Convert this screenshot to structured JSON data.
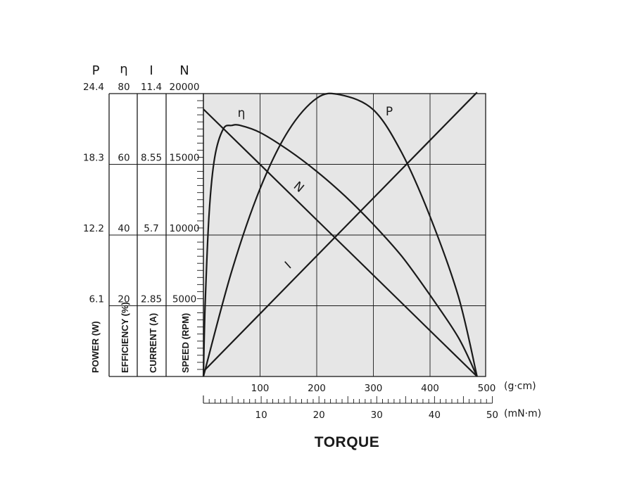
{
  "chart_data": {
    "type": "line",
    "title": "",
    "xlabel": "TORQUE",
    "x_primary": {
      "unit": "(g·cm)",
      "range": [
        0,
        500
      ],
      "ticks": [
        100,
        200,
        300,
        400,
        500
      ],
      "tick_labels": [
        "100",
        "200",
        "300",
        "400",
        "500"
      ]
    },
    "x_secondary": {
      "unit": "(mN·m)",
      "range": [
        0,
        50
      ],
      "ticks": [
        10,
        20,
        30,
        40,
        50
      ],
      "tick_labels": [
        "10",
        "20",
        "30",
        "40",
        "50"
      ]
    },
    "y_axes": [
      {
        "key": "P",
        "symbol": "P",
        "label": "POWER (W)",
        "max_label": "24.4",
        "range": [
          0,
          24.4
        ],
        "tick_labels": [
          "6.1",
          "12.2",
          "18.3",
          "24.4"
        ]
      },
      {
        "key": "eta",
        "symbol": "η",
        "label": "EFFICIENCY (%)",
        "max_label": "80",
        "range": [
          0,
          80
        ],
        "tick_labels": [
          "20",
          "40",
          "60",
          "80"
        ]
      },
      {
        "key": "I",
        "symbol": "I",
        "label": "CURRENT (A)",
        "max_label": "11.4",
        "range": [
          0,
          11.4
        ],
        "tick_labels": [
          "2.85",
          "5.7",
          "8.55",
          "11.4"
        ]
      },
      {
        "key": "N",
        "symbol": "N",
        "label": "SPEED (RPM)",
        "max_label": "20000",
        "range": [
          0,
          20000
        ],
        "tick_labels": [
          "5000",
          "10000",
          "15000",
          "20000"
        ]
      }
    ],
    "grid": true,
    "series": [
      {
        "name": "N",
        "axis": "N",
        "label_text": "N",
        "x": [
          0,
          100,
          200,
          300,
          400,
          483
        ],
        "y": [
          18900,
          14990,
          11070,
          7160,
          3240,
          0
        ]
      },
      {
        "name": "I",
        "axis": "I",
        "label_text": "I",
        "x": [
          0,
          100,
          200,
          300,
          400,
          483
        ],
        "y": [
          0.2,
          2.53,
          4.86,
          7.19,
          9.52,
          11.45
        ]
      },
      {
        "name": "P",
        "axis": "P",
        "label_text": "P",
        "x": [
          0,
          50,
          100,
          150,
          200,
          241,
          300,
          350,
          400,
          450,
          483
        ],
        "y": [
          0,
          9.1,
          16.2,
          21.2,
          24.0,
          24.3,
          23.0,
          19.3,
          13.8,
          6.9,
          0
        ]
      },
      {
        "name": "η",
        "axis": "eta",
        "label_text": "η",
        "x": [
          0,
          3,
          10,
          20,
          35,
          50,
          65,
          100,
          150,
          200,
          250,
          300,
          350,
          400,
          450,
          483
        ],
        "y": [
          0,
          20,
          46,
          62,
          70,
          71,
          71,
          69,
          64,
          58,
          51,
          43,
          34,
          23,
          11,
          0
        ]
      }
    ]
  }
}
